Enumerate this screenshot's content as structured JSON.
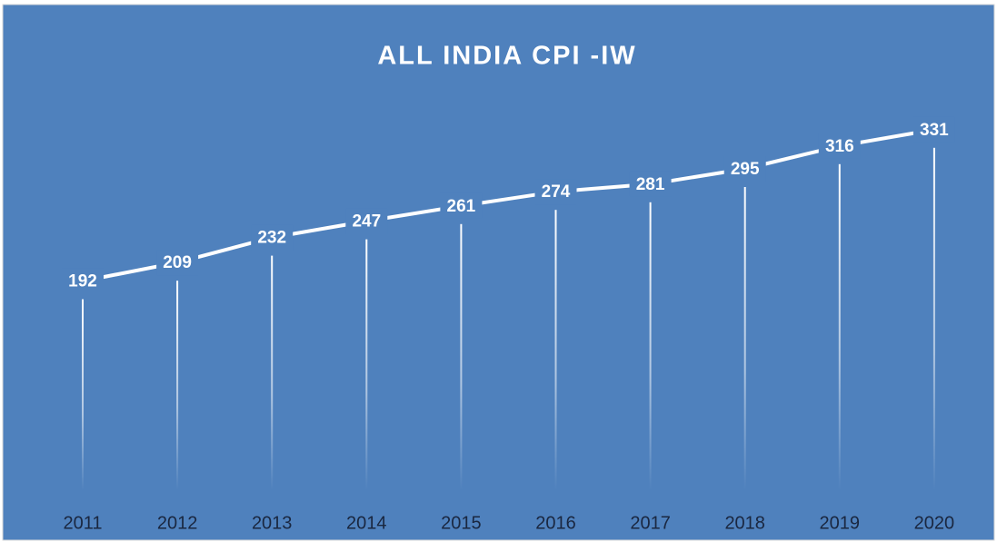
{
  "chart_data": {
    "type": "line",
    "title": "ALL INDIA CPI -IW",
    "categories": [
      "2011",
      "2012",
      "2013",
      "2014",
      "2015",
      "2016",
      "2017",
      "2018",
      "2019",
      "2020"
    ],
    "values": [
      192,
      209,
      232,
      247,
      261,
      274,
      281,
      295,
      316,
      331
    ],
    "color": "#ffffff",
    "background": "#4f81bd",
    "ylim": [
      0,
      350
    ],
    "drop_lines": true
  }
}
